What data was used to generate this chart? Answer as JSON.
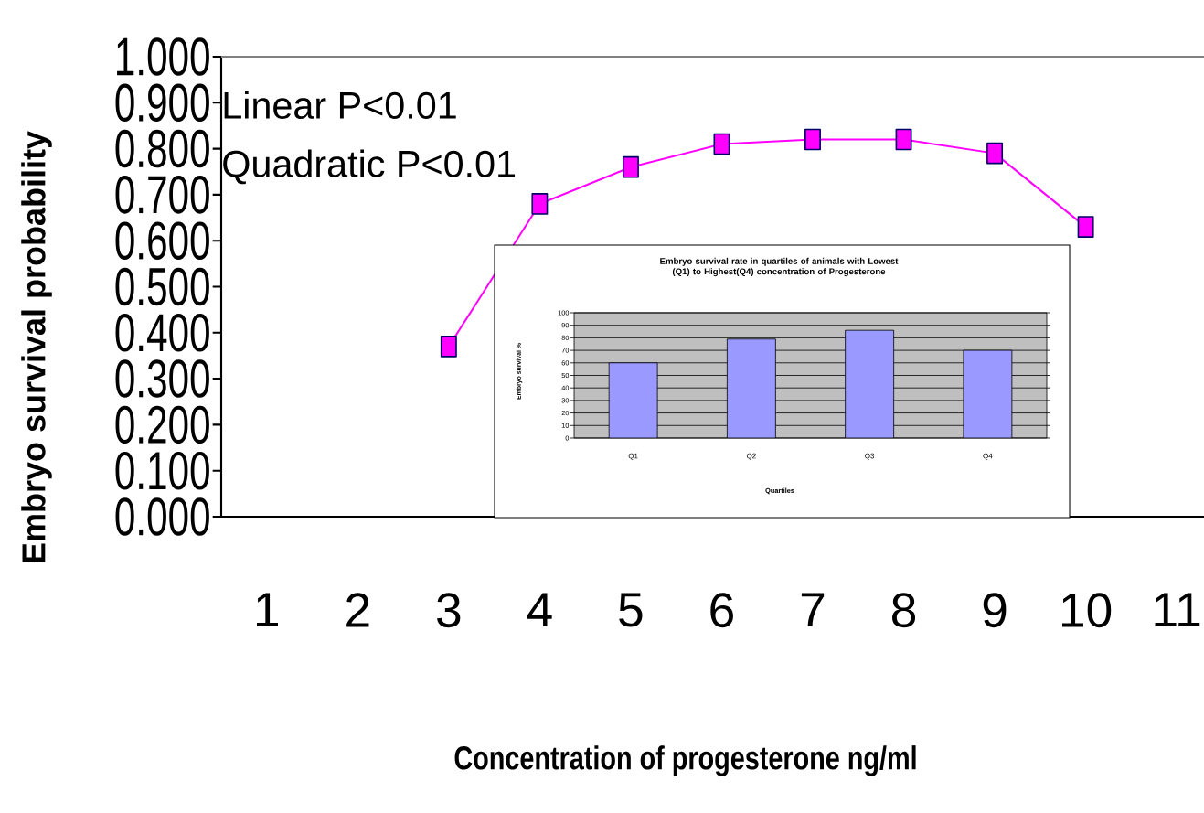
{
  "chart_data": [
    {
      "type": "line",
      "xlabel": "Concentration of progesterone ng/ml",
      "ylabel": "Embryo survival probability",
      "categories": [
        "1",
        "2",
        "3",
        "4",
        "5",
        "6",
        "7",
        "8",
        "9",
        "10",
        "11"
      ],
      "values": [
        null,
        null,
        0.37,
        0.68,
        0.76,
        0.81,
        0.82,
        0.82,
        0.79,
        0.63,
        null
      ],
      "color": "#ff00ff",
      "marker": "square",
      "line_style": "solid",
      "ylim": [
        0,
        1
      ],
      "yticks": [
        {
          "value": 0,
          "label": "0.000"
        },
        {
          "value": 0.1,
          "label": "0.100"
        },
        {
          "value": 0.2,
          "label": "0.200"
        },
        {
          "value": 0.3,
          "label": "0.300"
        },
        {
          "value": 0.4,
          "label": "0.400"
        },
        {
          "value": 0.5,
          "label": "0.500"
        },
        {
          "value": 0.6,
          "label": "0.600"
        },
        {
          "value": 0.7,
          "label": "0.700"
        },
        {
          "value": 0.8,
          "label": "0.800"
        },
        {
          "value": 0.9,
          "label": "0.900"
        },
        {
          "value": 1,
          "label": "1.000"
        }
      ],
      "annotations": [
        "Linear P<0.01",
        "Quadratic P<0.01"
      ]
    },
    {
      "type": "bar",
      "title": "Embryo survival rate in quartiles of animals with Lowest (Q1) to Highest(Q4) concentration of Progesterone",
      "xlabel": "Quartiles",
      "ylabel": "Embryo survival  %",
      "categories": [
        "Q1",
        "Q2",
        "Q3",
        "Q4"
      ],
      "values": [
        60,
        79,
        86,
        70
      ],
      "color": "#9999ff",
      "ylim": [
        0,
        100
      ],
      "yticks": [
        0,
        10,
        20,
        30,
        40,
        50,
        60,
        70,
        80,
        90,
        100
      ],
      "grid": "y"
    }
  ]
}
